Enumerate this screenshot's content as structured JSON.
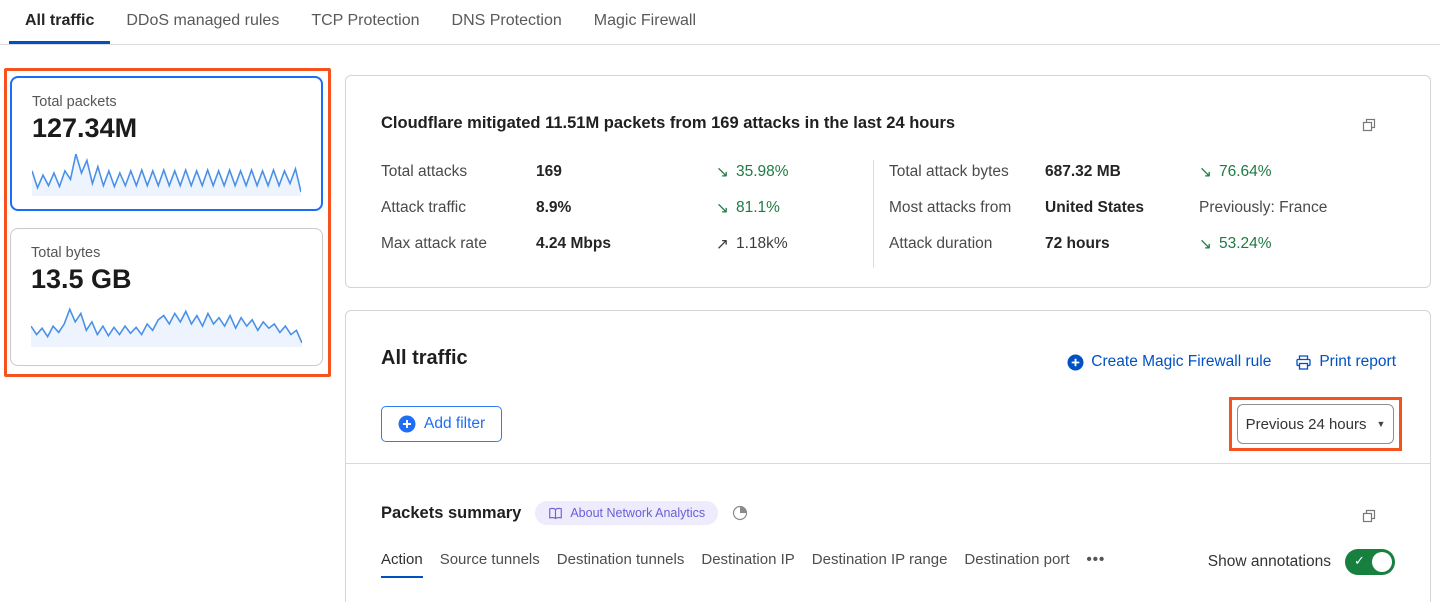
{
  "topnav": {
    "tabs": [
      {
        "label": "All traffic",
        "active": true
      },
      {
        "label": "DDoS managed rules",
        "active": false
      },
      {
        "label": "TCP Protection",
        "active": false
      },
      {
        "label": "DNS Protection",
        "active": false
      },
      {
        "label": "Magic Firewall",
        "active": false
      }
    ]
  },
  "sidebar": {
    "cards": [
      {
        "title": "Total packets",
        "value": "127.34M"
      },
      {
        "title": "Total bytes",
        "value": "13.5 GB"
      }
    ]
  },
  "summary_panel": {
    "headline": "Cloudflare mitigated 11.51M packets from 169 attacks in the last 24 hours",
    "stats_left": [
      {
        "label": "Total attacks",
        "value": "169",
        "arrow": "↘",
        "delta": "35.98%"
      },
      {
        "label": "Attack traffic",
        "value": "8.9%",
        "arrow": "↘",
        "delta": "81.1%"
      },
      {
        "label": "Max attack rate",
        "value": "4.24 Mbps",
        "arrow": "↗",
        "delta": "1.18k%"
      }
    ],
    "stats_right": [
      {
        "label": "Total attack bytes",
        "value": "687.32 MB",
        "arrow": "↘",
        "delta": "76.64%"
      },
      {
        "label": "Most attacks from",
        "value": "United States",
        "arrow": "",
        "delta": "Previously: France"
      },
      {
        "label": "Attack duration",
        "value": "72 hours",
        "arrow": "↘",
        "delta": "53.24%"
      }
    ]
  },
  "traffic_panel": {
    "title": "All traffic",
    "create_rule_label": "Create Magic Firewall rule",
    "print_label": "Print report",
    "add_filter_label": "Add filter",
    "time_range": "Previous 24 hours",
    "caret": "▼"
  },
  "packets_summary": {
    "title": "Packets summary",
    "badge_label": "About Network Analytics",
    "tabs": [
      {
        "label": "Action",
        "active": true
      },
      {
        "label": "Source tunnels",
        "active": false
      },
      {
        "label": "Destination tunnels",
        "active": false
      },
      {
        "label": "Destination IP",
        "active": false
      },
      {
        "label": "Destination IP range",
        "active": false
      },
      {
        "label": "Destination port",
        "active": false
      }
    ],
    "more_label": "•••",
    "annotations_label": "Show annotations",
    "toggle_state": "on",
    "toggle_check": "✓"
  },
  "colors": {
    "highlight_orange": "#f5521d",
    "selected_card_blue": "#1a6ef5",
    "link_blue": "#0051c3",
    "delta_green": "#1f7a44",
    "toggle_green": "#17803f",
    "badge_bg": "#edebfc",
    "badge_text": "#6a60d9",
    "sparkline_blue": "#4a90e8"
  },
  "chart_data": [
    {
      "type": "line",
      "title": "Total packets sparkline (24h, values normalized 0-1, no axes shown)",
      "values": [
        0.55,
        0.15,
        0.45,
        0.2,
        0.5,
        0.18,
        0.55,
        0.35,
        0.95,
        0.5,
        0.8,
        0.25,
        0.65,
        0.2,
        0.55,
        0.18,
        0.5,
        0.2,
        0.55,
        0.2,
        0.57,
        0.2,
        0.55,
        0.2,
        0.57,
        0.2,
        0.55,
        0.2,
        0.57,
        0.2,
        0.55,
        0.2,
        0.57,
        0.2,
        0.55,
        0.2,
        0.57,
        0.2,
        0.55,
        0.2,
        0.57,
        0.2,
        0.55,
        0.2,
        0.57,
        0.2,
        0.55,
        0.25,
        0.6,
        0.05
      ]
    },
    {
      "type": "line",
      "title": "Total bytes sparkline (24h, values normalized 0-1, no axes shown)",
      "values": [
        0.45,
        0.25,
        0.4,
        0.2,
        0.45,
        0.3,
        0.5,
        0.85,
        0.55,
        0.75,
        0.35,
        0.55,
        0.25,
        0.45,
        0.22,
        0.42,
        0.25,
        0.45,
        0.28,
        0.42,
        0.25,
        0.5,
        0.35,
        0.6,
        0.7,
        0.5,
        0.75,
        0.55,
        0.8,
        0.5,
        0.7,
        0.45,
        0.75,
        0.5,
        0.65,
        0.45,
        0.7,
        0.4,
        0.65,
        0.45,
        0.6,
        0.35,
        0.55,
        0.4,
        0.5,
        0.3,
        0.45,
        0.25,
        0.35,
        0.05
      ]
    }
  ]
}
